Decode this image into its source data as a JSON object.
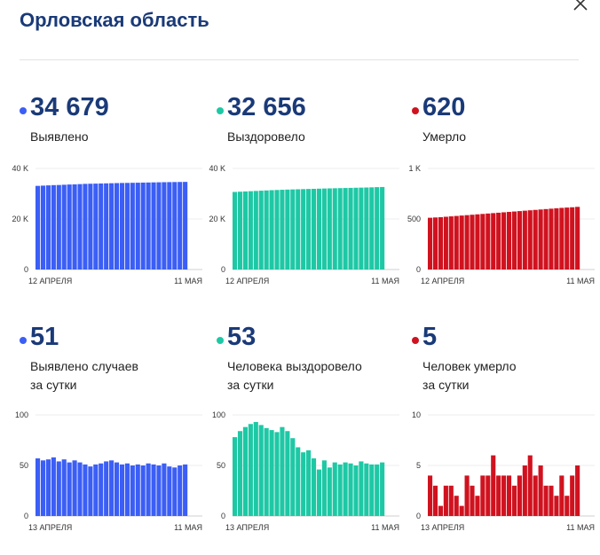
{
  "header": {
    "title": "Орловская область"
  },
  "colors": {
    "detected": "#3b5ef5",
    "recovered": "#1ec8a5",
    "died": "#d0121f",
    "title": "#1a3a78"
  },
  "icons": {
    "close": "close-icon"
  },
  "panels": [
    {
      "value": "34 679",
      "label": "Выявлено",
      "color": "#3b5ef5",
      "chart_data": {
        "type": "bar",
        "x_start_label": "12 АПРЕЛЯ",
        "x_end_label": "11 МАЯ",
        "ylim": [
          0,
          40000
        ],
        "yticks": [
          "40 K",
          "20 K",
          "0"
        ],
        "values": [
          33100,
          33200,
          33300,
          33400,
          33450,
          33550,
          33650,
          33700,
          33800,
          33900,
          33950,
          34000,
          34050,
          34100,
          34150,
          34200,
          34250,
          34280,
          34320,
          34360,
          34400,
          34440,
          34480,
          34520,
          34560,
          34590,
          34620,
          34650,
          34679
        ]
      }
    },
    {
      "value": "32 656",
      "label": "Выздоровело",
      "color": "#1ec8a5",
      "chart_data": {
        "type": "bar",
        "x_start_label": "12 АПРЕЛЯ",
        "x_end_label": "11 МАЯ",
        "ylim": [
          0,
          40000
        ],
        "yticks": [
          "40 K",
          "20 K",
          "0"
        ],
        "values": [
          30700,
          30800,
          30900,
          31000,
          31100,
          31200,
          31300,
          31400,
          31480,
          31560,
          31640,
          31700,
          31760,
          31820,
          31880,
          31940,
          32000,
          32060,
          32110,
          32160,
          32210,
          32260,
          32310,
          32360,
          32410,
          32460,
          32520,
          32600,
          32656
        ]
      }
    },
    {
      "value": "620",
      "label": "Умерло",
      "color": "#d0121f",
      "chart_data": {
        "type": "bar",
        "x_start_label": "12 АПРЕЛЯ",
        "x_end_label": "11 МАЯ",
        "ylim": [
          0,
          1000
        ],
        "yticks": [
          "1 K",
          "500",
          "0"
        ],
        "values": [
          512,
          515,
          518,
          522,
          526,
          530,
          534,
          538,
          542,
          546,
          550,
          554,
          558,
          562,
          566,
          570,
          574,
          578,
          582,
          586,
          590,
          594,
          598,
          602,
          606,
          610,
          613,
          616,
          620
        ]
      }
    },
    {
      "value": "51",
      "label": "Выявлено случаев\nза сутки",
      "color": "#3b5ef5",
      "chart_data": {
        "type": "bar",
        "x_start_label": "13 АПРЕЛЯ",
        "x_end_label": "11 МАЯ",
        "ylim": [
          0,
          100
        ],
        "yticks": [
          "100",
          "50",
          "0"
        ],
        "values": [
          57,
          55,
          56,
          58,
          54,
          56,
          53,
          55,
          53,
          51,
          49,
          51,
          52,
          54,
          55,
          53,
          51,
          52,
          50,
          51,
          50,
          52,
          51,
          50,
          52,
          49,
          48,
          50,
          51
        ]
      }
    },
    {
      "value": "53",
      "label": "Человека выздоровело\nза сутки",
      "color": "#1ec8a5",
      "chart_data": {
        "type": "bar",
        "x_start_label": "13 АПРЕЛЯ",
        "x_end_label": "11 МАЯ",
        "ylim": [
          0,
          100
        ],
        "yticks": [
          "100",
          "50",
          "0"
        ],
        "values": [
          78,
          84,
          88,
          91,
          93,
          90,
          87,
          85,
          83,
          88,
          84,
          77,
          68,
          63,
          65,
          57,
          46,
          55,
          48,
          53,
          51,
          53,
          52,
          50,
          54,
          52,
          51,
          51,
          53
        ]
      }
    },
    {
      "value": "5",
      "label": "Человек умерло\nза сутки",
      "color": "#d0121f",
      "chart_data": {
        "type": "bar",
        "x_start_label": "13 АПРЕЛЯ",
        "x_end_label": "11 МАЯ",
        "ylim": [
          0,
          10
        ],
        "yticks": [
          "10",
          "5",
          "0"
        ],
        "values": [
          4,
          3,
          1,
          3,
          3,
          2,
          1,
          4,
          3,
          2,
          4,
          4,
          6,
          4,
          4,
          4,
          3,
          4,
          5,
          6,
          4,
          5,
          3,
          3,
          2,
          4,
          2,
          4,
          5
        ]
      }
    }
  ]
}
